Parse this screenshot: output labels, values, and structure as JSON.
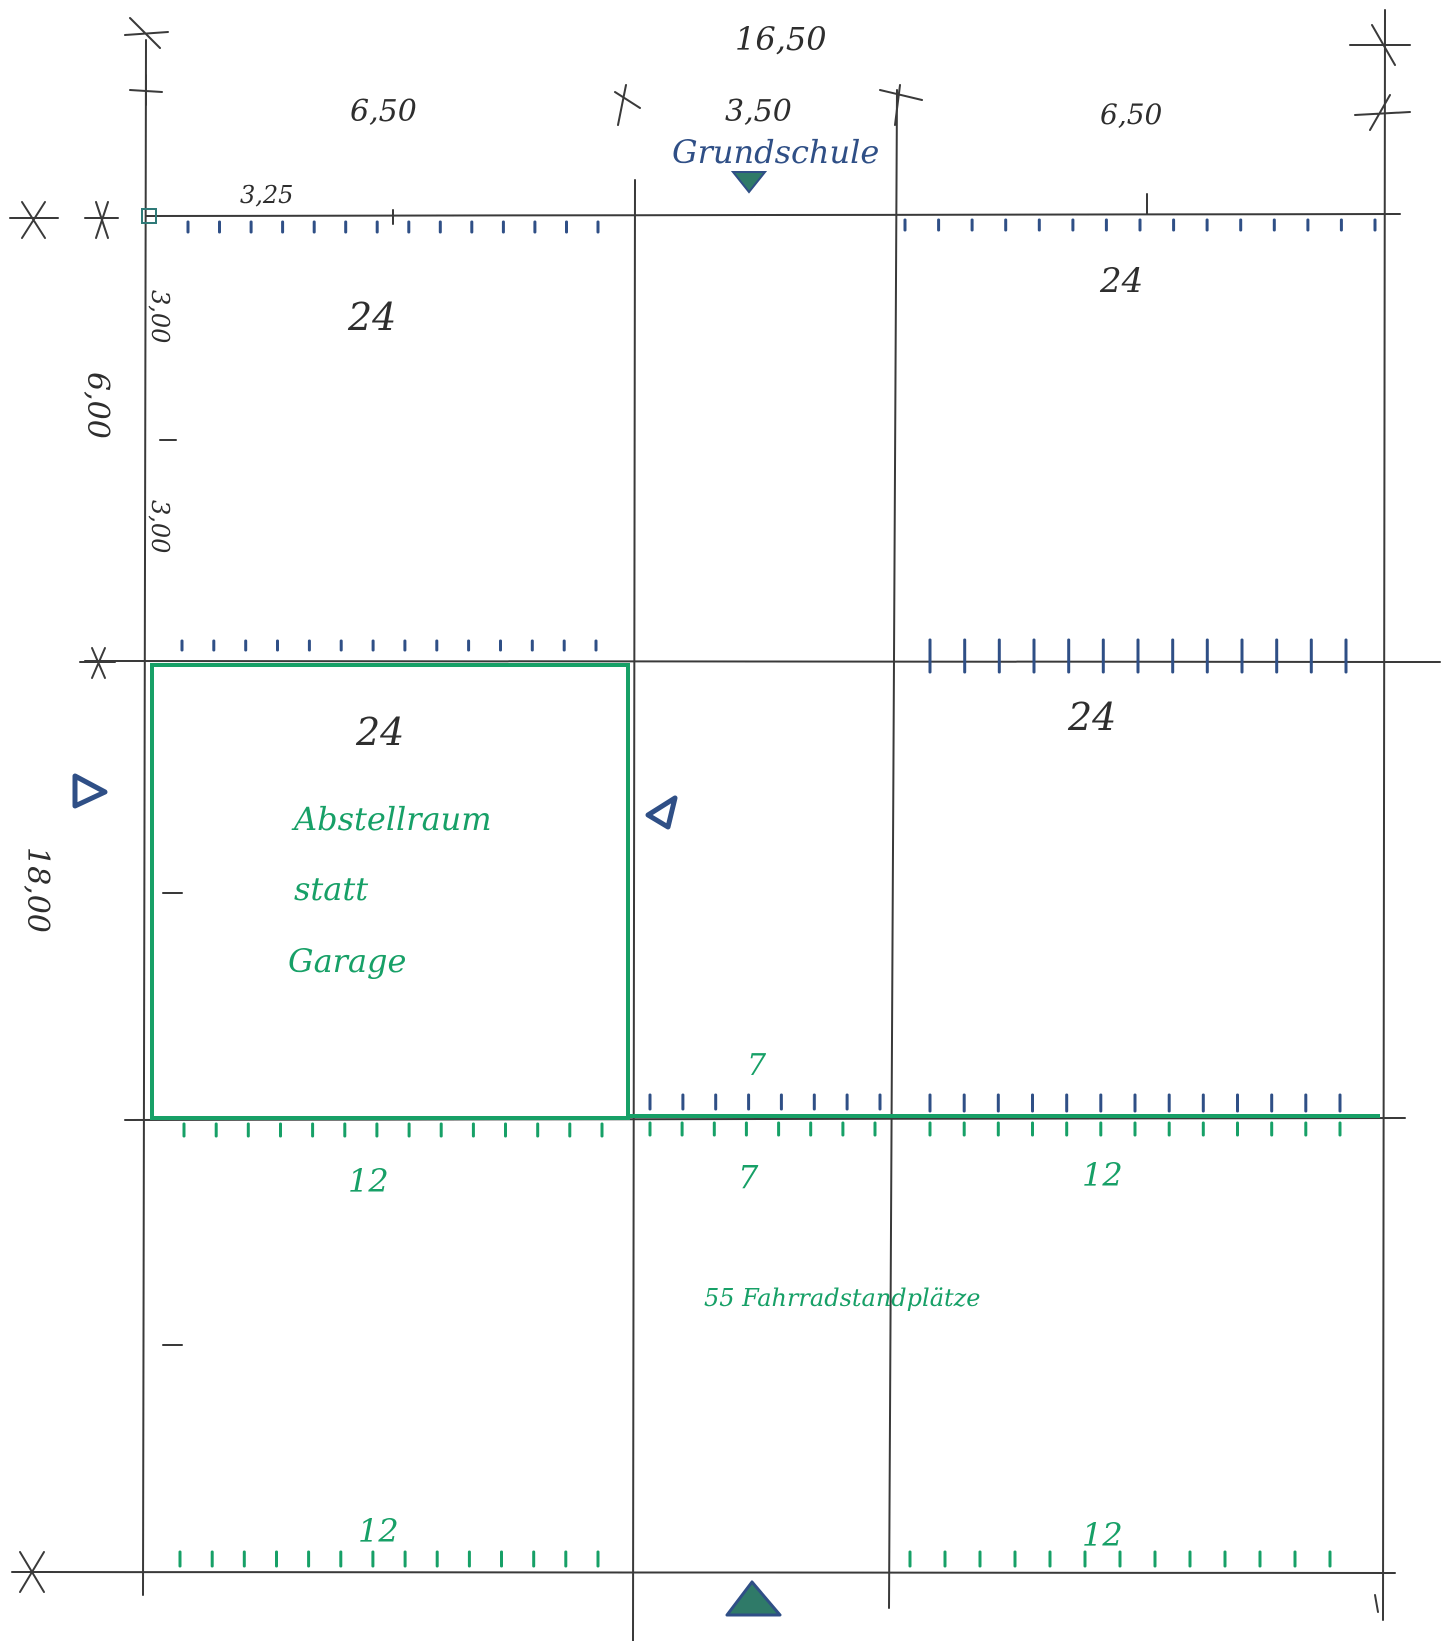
{
  "dimensions": {
    "total_width": "16,50",
    "left_width": "6,50",
    "middle_width": "3,50",
    "right_width": "6,50",
    "half_bay": "3,25",
    "row_height": "6,00",
    "half_row_upper": "3,00",
    "half_row_lower": "3,00",
    "total_height": "18,00"
  },
  "labels": {
    "top_entrance": "Grundschule",
    "storage_line1": "Abstellraum",
    "storage_line2": "statt",
    "storage_line3": "Garage",
    "bicycles": "55 Fahrradstandplätze"
  },
  "counts": {
    "row1_left": "24",
    "row1_right": "24",
    "row2_left": "24",
    "row2_right": "24",
    "row3_middle_top": "7",
    "row3_left": "12",
    "row3_middle": "7",
    "row3_right": "12",
    "row4_left": "12",
    "row4_right": "12"
  },
  "colors": {
    "pencil": "#2e2e2e",
    "blue_ink": "#2f4f86",
    "green_ink": "#17a067"
  }
}
